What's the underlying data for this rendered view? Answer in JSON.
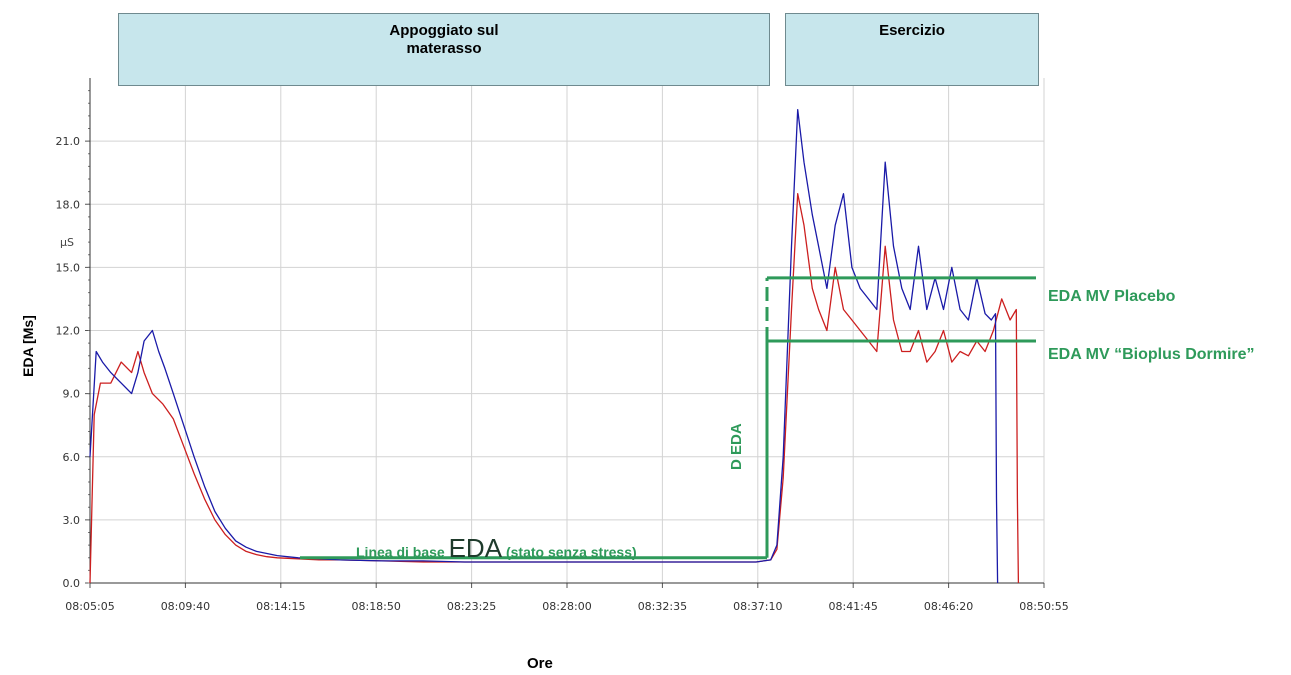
{
  "phases": [
    {
      "label": "Appoggiato sul\nmaterasso"
    },
    {
      "label": "Esercizio"
    }
  ],
  "axes": {
    "ylabel": "EDA [Ms]",
    "xlabel": "Ore",
    "unit": "µS"
  },
  "annotations": {
    "placebo": "EDA MV Placebo",
    "bioplus": "EDA MV “Bioplus Dormire”",
    "baseline_pre": "Linea di base ",
    "baseline_big": "EDA",
    "baseline_post": " (stato  senza  stress)",
    "delta": "D EDA"
  },
  "colors": {
    "annotation": "#2e9a5a",
    "series_blue": "#1a1aa8",
    "series_red": "#cc1f1f",
    "grid": "#d3d3d3"
  },
  "chart_data": {
    "type": "line",
    "xlabel": "Ore",
    "ylabel": "EDA [Ms]",
    "x_ticks": [
      "08:05:05",
      "08:09:40",
      "08:14:15",
      "08:18:50",
      "08:23:25",
      "08:28:00",
      "08:32:35",
      "08:37:10",
      "08:41:45",
      "08:46:20",
      "08:50:55"
    ],
    "y_ticks": [
      "0.0",
      "3.0",
      "6.0",
      "9.0",
      "12.0",
      "15.0",
      "18.0",
      "21.0"
    ],
    "ylim": [
      0,
      24
    ],
    "xlim_minutes": [
      0,
      45.83
    ],
    "grid": true,
    "series": [
      {
        "color": "blue",
        "x": [
          0,
          0.3,
          0.6,
          1.0,
          1.5,
          2.0,
          2.3,
          2.6,
          3.0,
          3.3,
          3.6,
          4.0,
          4.5,
          5.0,
          5.5,
          6.0,
          6.5,
          7.0,
          7.5,
          8.0,
          8.5,
          9.0,
          10.0,
          11.0,
          12.0,
          14.0,
          16.0,
          18.0,
          20.0,
          22.0,
          24.0,
          26.0,
          28.0,
          30.0,
          32.0,
          32.7,
          33.0,
          33.3,
          33.7,
          34.0,
          34.3,
          34.7,
          35.0,
          35.4,
          35.8,
          36.2,
          36.6,
          37.0,
          37.4,
          37.8,
          38.2,
          38.6,
          39.0,
          39.4,
          39.8,
          40.2,
          40.6,
          41.0,
          41.4,
          41.8,
          42.2,
          42.6,
          43.0,
          43.3,
          43.5,
          43.55,
          43.6
        ],
        "y": [
          6.0,
          11.0,
          10.5,
          10.0,
          9.5,
          9.0,
          10.0,
          11.5,
          12.0,
          11.0,
          10.2,
          9.0,
          7.5,
          6.0,
          4.6,
          3.4,
          2.6,
          2.0,
          1.7,
          1.5,
          1.4,
          1.3,
          1.2,
          1.15,
          1.1,
          1.05,
          1.05,
          1.0,
          1.0,
          1.0,
          1.0,
          1.0,
          1.0,
          1.0,
          1.0,
          1.1,
          1.8,
          6.0,
          16.0,
          22.5,
          20.0,
          17.5,
          16.0,
          14.0,
          17.0,
          18.5,
          15.0,
          14.0,
          13.5,
          13.0,
          20.0,
          16.0,
          14.0,
          13.0,
          16.0,
          13.0,
          14.5,
          13.0,
          15.0,
          13.0,
          12.5,
          14.5,
          12.8,
          12.5,
          12.8,
          4.0,
          0.0
        ]
      },
      {
        "color": "red",
        "x": [
          0,
          0.2,
          0.5,
          1.0,
          1.5,
          2.0,
          2.3,
          2.6,
          3.0,
          3.5,
          4.0,
          4.5,
          5.0,
          5.5,
          6.0,
          6.5,
          7.0,
          7.5,
          8.0,
          8.5,
          9.0,
          10.0,
          11.0,
          12.0,
          14.0,
          16.0,
          18.0,
          20.0,
          22.0,
          24.0,
          26.0,
          28.0,
          30.0,
          32.0,
          32.7,
          33.0,
          33.3,
          33.7,
          34.0,
          34.3,
          34.7,
          35.0,
          35.4,
          35.8,
          36.2,
          36.6,
          37.0,
          37.4,
          37.8,
          38.2,
          38.6,
          39.0,
          39.4,
          39.8,
          40.2,
          40.6,
          41.0,
          41.4,
          41.8,
          42.2,
          42.6,
          43.0,
          43.4,
          43.8,
          44.2,
          44.5,
          44.55,
          44.6
        ],
        "y": [
          0.0,
          8.0,
          9.5,
          9.5,
          10.5,
          10.0,
          11.0,
          10.0,
          9.0,
          8.5,
          7.8,
          6.5,
          5.2,
          4.0,
          3.0,
          2.3,
          1.8,
          1.5,
          1.35,
          1.25,
          1.2,
          1.15,
          1.1,
          1.1,
          1.05,
          1.0,
          1.0,
          1.0,
          1.0,
          1.0,
          1.0,
          1.0,
          1.0,
          1.0,
          1.1,
          1.6,
          5.0,
          13.0,
          18.5,
          17.0,
          14.0,
          13.0,
          12.0,
          15.0,
          13.0,
          12.5,
          12.0,
          11.5,
          11.0,
          16.0,
          12.5,
          11.0,
          11.0,
          12.0,
          10.5,
          11.0,
          12.0,
          10.5,
          11.0,
          10.8,
          11.5,
          11.0,
          12.0,
          13.5,
          12.5,
          13.0,
          4.0,
          0.0
        ]
      }
    ],
    "reference_lines": {
      "baseline_EDA": 1.2,
      "placebo_mean": 14.5,
      "bioplus_mean": 11.5
    }
  }
}
